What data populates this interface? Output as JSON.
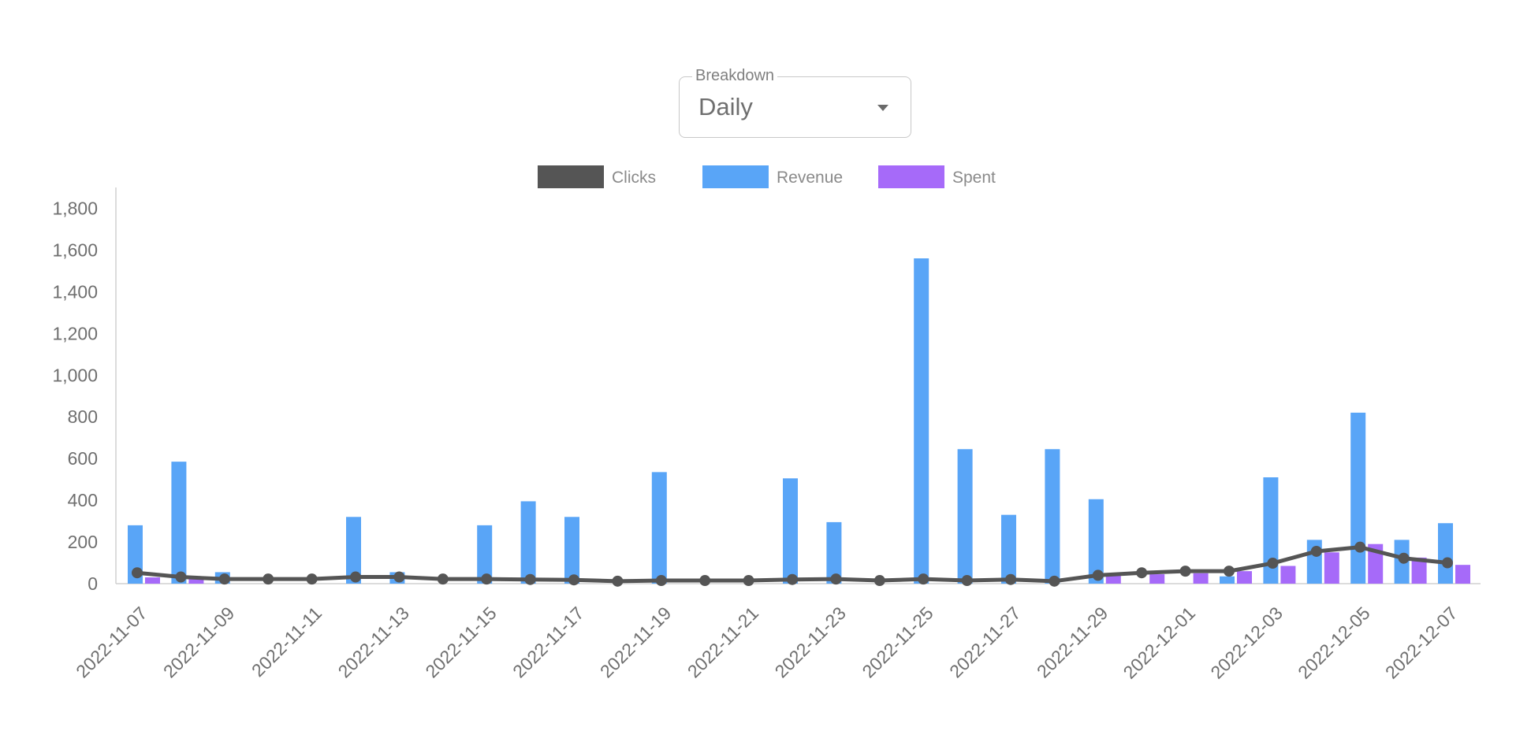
{
  "breakdown": {
    "label": "Breakdown",
    "value": "Daily"
  },
  "chart_data": {
    "type": "bar",
    "colors": {
      "clicks": "#555555",
      "revenue": "#59a5f7",
      "spent": "#a66af9"
    },
    "legend": [
      "Clicks",
      "Revenue",
      "Spent"
    ],
    "legend_position": "top",
    "categories": [
      "2022-11-07",
      "2022-11-08",
      "2022-11-09",
      "2022-11-10",
      "2022-11-11",
      "2022-11-12",
      "2022-11-13",
      "2022-11-14",
      "2022-11-15",
      "2022-11-16",
      "2022-11-17",
      "2022-11-18",
      "2022-11-19",
      "2022-11-20",
      "2022-11-21",
      "2022-11-22",
      "2022-11-23",
      "2022-11-24",
      "2022-11-25",
      "2022-11-26",
      "2022-11-27",
      "2022-11-28",
      "2022-11-29",
      "2022-11-30",
      "2022-12-01",
      "2022-12-02",
      "2022-12-03",
      "2022-12-04",
      "2022-12-05",
      "2022-12-06",
      "2022-12-07"
    ],
    "tick_labels": [
      "2022-11-07",
      "2022-11-09",
      "2022-11-11",
      "2022-11-13",
      "2022-11-15",
      "2022-11-17",
      "2022-11-19",
      "2022-11-21",
      "2022-11-23",
      "2022-11-25",
      "2022-11-27",
      "2022-11-29",
      "2022-12-01",
      "2022-12-03",
      "2022-12-05",
      "2022-12-07"
    ],
    "y_ticks": [
      "0",
      "200",
      "400",
      "600",
      "800",
      "1,000",
      "1,200",
      "1,400",
      "1,600",
      "1,800"
    ],
    "ylim": [
      0,
      1900
    ],
    "grid": false,
    "series": [
      {
        "name": "Revenue",
        "type": "bar",
        "values": [
          280,
          585,
          55,
          0,
          0,
          320,
          55,
          0,
          280,
          395,
          320,
          0,
          535,
          0,
          0,
          505,
          295,
          0,
          1560,
          645,
          330,
          645,
          405,
          0,
          0,
          35,
          510,
          210,
          820,
          210,
          290
        ]
      },
      {
        "name": "Spent",
        "type": "bar",
        "values": [
          30,
          30,
          0,
          0,
          0,
          0,
          0,
          0,
          0,
          0,
          0,
          0,
          0,
          0,
          0,
          0,
          0,
          0,
          0,
          0,
          0,
          0,
          40,
          45,
          50,
          60,
          85,
          150,
          190,
          125,
          90
        ]
      },
      {
        "name": "Clicks",
        "type": "line",
        "values": [
          52,
          32,
          22,
          22,
          22,
          32,
          32,
          22,
          22,
          20,
          18,
          12,
          15,
          15,
          15,
          20,
          22,
          15,
          22,
          15,
          20,
          12,
          40,
          52,
          60,
          60,
          98,
          155,
          175,
          122,
          100
        ]
      }
    ]
  }
}
